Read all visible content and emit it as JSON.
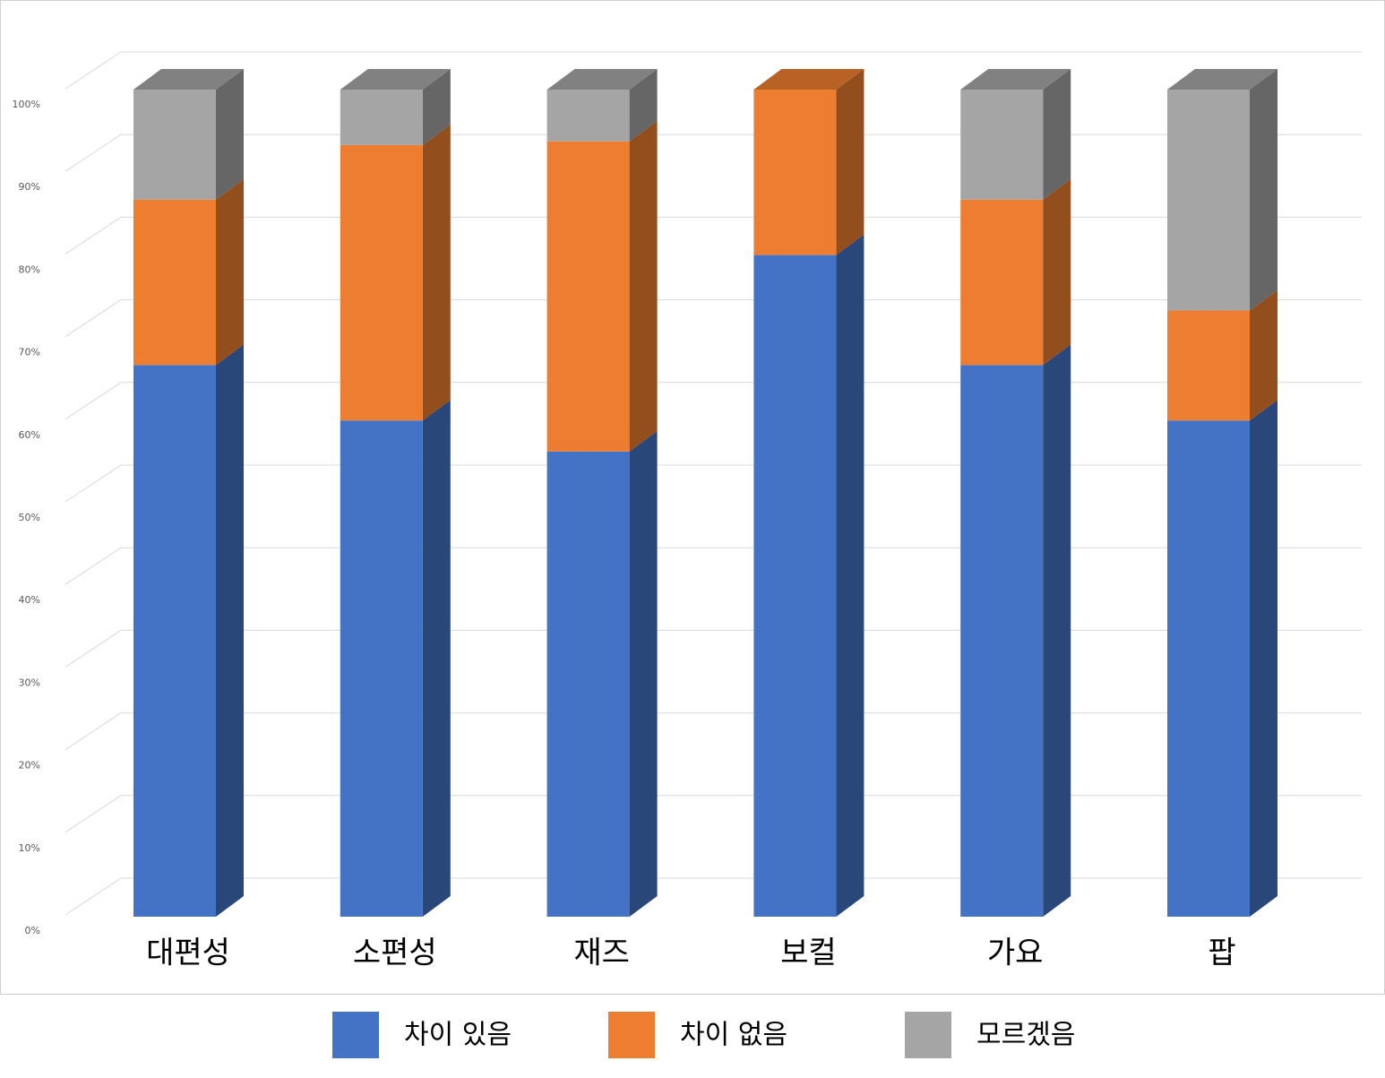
{
  "chart_data": {
    "type": "bar3d_stacked",
    "categories": [
      "대편성",
      "소편성",
      "재즈",
      "보컬",
      "가요",
      "팝"
    ],
    "series": [
      {
        "name": "차이 있음",
        "color": "#4472c4",
        "values": [
          66.7,
          60,
          56.25,
          80,
          66.7,
          60
        ]
      },
      {
        "name": "차이 없음",
        "color": "#ed7d31",
        "values": [
          20,
          33.3,
          37.5,
          20,
          20,
          13.3
        ]
      },
      {
        "name": "모르겠음",
        "color": "#a5a5a5",
        "values": [
          13.3,
          6.7,
          6.25,
          0,
          13.3,
          26.7
        ]
      }
    ],
    "ylim": [
      0,
      100
    ],
    "yticks": [
      {
        "value": 0,
        "label": "0%"
      },
      {
        "value": 10,
        "label": "10%"
      },
      {
        "value": 20,
        "label": "20%"
      },
      {
        "value": 30,
        "label": "30%"
      },
      {
        "value": 40,
        "label": "40%"
      },
      {
        "value": 50,
        "label": "50%"
      },
      {
        "value": 60,
        "label": "60%"
      },
      {
        "value": 70,
        "label": "70%"
      },
      {
        "value": 80,
        "label": "80%"
      },
      {
        "value": 90,
        "label": "90%"
      },
      {
        "value": 100,
        "label": "100%"
      }
    ],
    "grid": true,
    "legend": "bottom"
  }
}
